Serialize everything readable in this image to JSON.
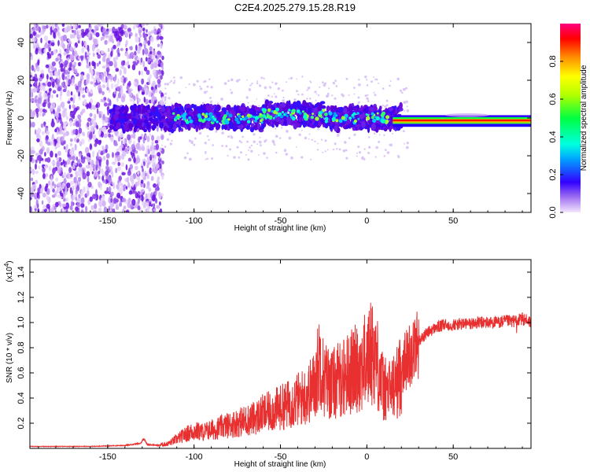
{
  "title": "C2E4.2025.279.15.28.R19",
  "colors": {
    "spectrum_min": "#e6d0f5",
    "spectrum_mid": "#5a00d8",
    "snr_line": "#e83030",
    "carrier": "#ff0000",
    "axis": "#000000",
    "background": "#ffffff"
  },
  "chart_data": [
    {
      "type": "heatmap",
      "title": "",
      "xlabel": "Height of straight line (km)",
      "ylabel": "Frequency (Hz)",
      "xlim": [
        -195,
        95
      ],
      "ylim": [
        -50,
        50
      ],
      "x_ticks": [
        -150,
        -100,
        -50,
        0,
        50
      ],
      "x_tick_labels": [
        "-150",
        "-100",
        "-50",
        "0",
        "50"
      ],
      "y_ticks": [
        -40,
        -20,
        0,
        20,
        40
      ],
      "y_tick_labels": [
        "-40",
        "-20",
        "0",
        "20",
        "40"
      ],
      "colorbar": {
        "label": "Normalized spectral amplitude",
        "range": [
          0,
          1
        ],
        "ticks": [
          0.0,
          0.2,
          0.4,
          0.6,
          0.8
        ],
        "tick_labels": [
          "0.0",
          "0.2",
          "0.4",
          "0.6",
          "0.8"
        ]
      },
      "regions": [
        {
          "name": "noise",
          "x_range": [
            -195,
            -118
          ],
          "freq_range": [
            -50,
            50
          ],
          "amplitude": 0.1
        },
        {
          "name": "signal-onset",
          "x_range": [
            -148,
            20
          ],
          "center_freq": 0,
          "band_width": 10,
          "amplitude": 0.25
        },
        {
          "name": "carrier",
          "x_range": [
            15,
            95
          ],
          "center_freq": -1.5,
          "band_width": 3,
          "amplitude": 1.0
        }
      ]
    },
    {
      "type": "line",
      "title": "",
      "xlabel": "Height of straight line (km)",
      "ylabel": "SNR (10 * v/v)",
      "y_scale_label": "(x10",
      "y_scale_exp": "4",
      "y_scale_close": ")",
      "xlim": [
        -195,
        95
      ],
      "ylim": [
        0,
        1.5
      ],
      "x_ticks": [
        -150,
        -100,
        -50,
        0,
        50
      ],
      "x_tick_labels": [
        "-150",
        "-100",
        "-50",
        "0",
        "50"
      ],
      "y_ticks": [
        0.2,
        0.4,
        0.6,
        0.8,
        1.0,
        1.2,
        1.4
      ],
      "y_tick_labels": [
        "0.2",
        "0.4",
        "0.6",
        "0.8",
        "1.0",
        "1.2",
        "1.4"
      ],
      "series": [
        {
          "name": "SNR",
          "x": [
            -195,
            -180,
            -160,
            -150,
            -140,
            -131,
            -129,
            -127,
            -120,
            -115,
            -110,
            -105,
            -100,
            -95,
            -90,
            -85,
            -80,
            -75,
            -70,
            -65,
            -60,
            -55,
            -50,
            -45,
            -40,
            -35,
            -30,
            -27,
            -25,
            -20,
            -15,
            -10,
            -5,
            0,
            3,
            5,
            8,
            10,
            13,
            15,
            18,
            20,
            25,
            30,
            35,
            40,
            45,
            50,
            55,
            60,
            65,
            70,
            75,
            80,
            85,
            88,
            90,
            93,
            95
          ],
          "y": [
            0.02,
            0.02,
            0.02,
            0.025,
            0.03,
            0.05,
            0.1,
            0.04,
            0.03,
            0.04,
            0.08,
            0.12,
            0.15,
            0.14,
            0.16,
            0.18,
            0.2,
            0.22,
            0.24,
            0.26,
            0.3,
            0.32,
            0.35,
            0.38,
            0.42,
            0.45,
            0.55,
            0.8,
            0.6,
            0.55,
            0.6,
            0.65,
            0.7,
            0.75,
            0.85,
            0.8,
            0.6,
            0.5,
            0.5,
            0.52,
            0.58,
            0.65,
            0.75,
            0.85,
            0.92,
            0.96,
            0.98,
            0.98,
            0.99,
            0.99,
            1.0,
            1.0,
            1.0,
            1.01,
            1.01,
            1.02,
            1.03,
            1.02,
            1.0
          ]
        }
      ]
    }
  ]
}
